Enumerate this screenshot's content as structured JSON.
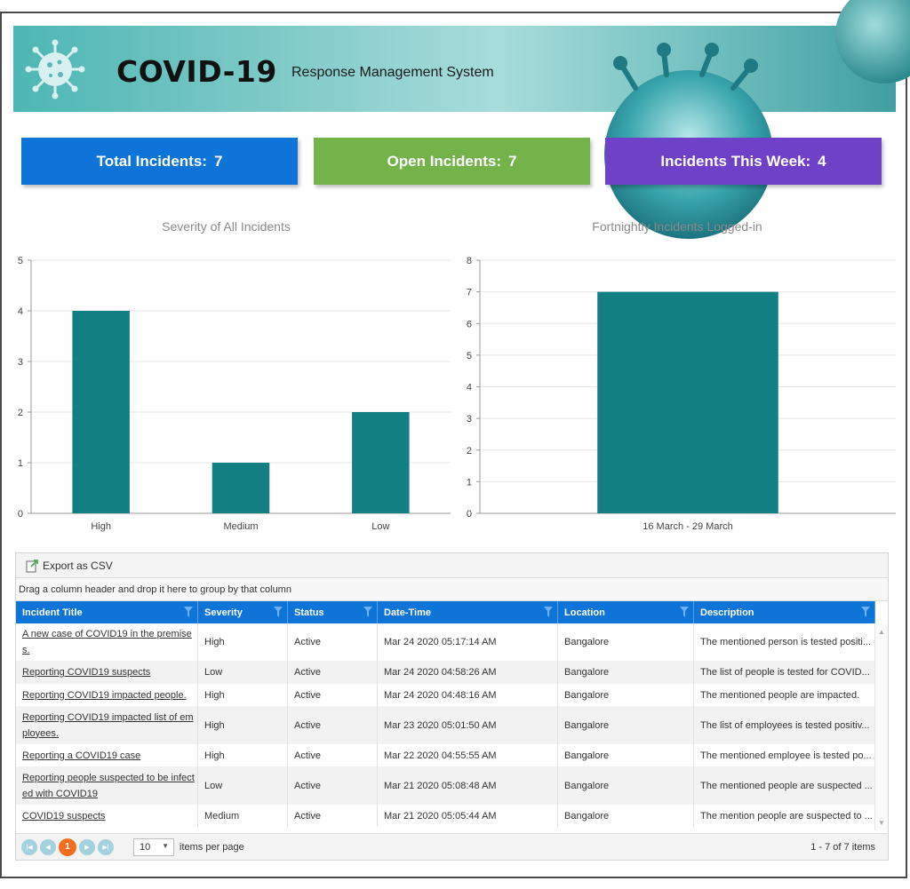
{
  "banner": {
    "title": "COVID-19",
    "subtitle": "Response Management System"
  },
  "cards": {
    "total": {
      "label": "Total Incidents:",
      "value": "7",
      "color": "#0f74d8"
    },
    "open": {
      "label": "Open Incidents:",
      "value": "7",
      "color": "#74b24a"
    },
    "week": {
      "label": "Incidents This Week:",
      "value": "4",
      "color": "#6f41c8"
    }
  },
  "chart_data": [
    {
      "type": "bar",
      "title": "Severity of All Incidents",
      "categories": [
        "High",
        "Medium",
        "Low"
      ],
      "values": [
        4,
        1,
        2
      ],
      "ylim": [
        0,
        5
      ],
      "yticks": [
        0,
        1,
        2,
        3,
        4,
        5
      ],
      "color": "#127f82",
      "grid": true
    },
    {
      "type": "bar",
      "title": "Fortnightly Incidents Logged-in",
      "categories": [
        "16 March - 29 March"
      ],
      "values": [
        7
      ],
      "ylim": [
        0,
        8
      ],
      "yticks": [
        0,
        1,
        2,
        3,
        4,
        5,
        6,
        7,
        8
      ],
      "color": "#127f82",
      "grid": true
    }
  ],
  "grid": {
    "export_label": "Export as CSV",
    "group_hint": "Drag a column header and drop it here to group by that column",
    "columns": [
      "Incident Title",
      "Severity",
      "Status",
      "Date-Time",
      "Location",
      "Description"
    ],
    "rows": [
      {
        "title": "A new case of COVID19 in the premise s.",
        "severity": "High",
        "status": "Active",
        "datetime": "Mar 24 2020 05:17:14 AM",
        "location": "Bangalore",
        "description": "The mentioned person is tested positi..."
      },
      {
        "title": "Reporting COVID19 suspects",
        "severity": "Low",
        "status": "Active",
        "datetime": "Mar 24 2020 04:58:26 AM",
        "location": "Bangalore",
        "description": "The list of people is tested for COVID..."
      },
      {
        "title": "Reporting COVID19 impacted people.",
        "severity": "High",
        "status": "Active",
        "datetime": "Mar 24 2020 04:48:16 AM",
        "location": "Bangalore",
        "description": "The mentioned people are impacted."
      },
      {
        "title": "Reporting COVID19 impacted list of em ployees.",
        "severity": "High",
        "status": "Active",
        "datetime": "Mar 23 2020 05:01:50 AM",
        "location": "Bangalore",
        "description": "The list of employees is tested positiv..."
      },
      {
        "title": "Reporting a COVID19 case",
        "severity": "High",
        "status": "Active",
        "datetime": "Mar 22 2020 04:55:55 AM",
        "location": "Bangalore",
        "description": "The mentioned employee is tested po..."
      },
      {
        "title": "Reporting people suspected to be infect ed with COVID19",
        "severity": "Low",
        "status": "Active",
        "datetime": "Mar 21 2020 05:08:48 AM",
        "location": "Bangalore",
        "description": "The mentioned people are suspected ..."
      },
      {
        "title": "COVID19 suspects",
        "severity": "Medium",
        "status": "Active",
        "datetime": "Mar 21 2020 05:05:44 AM",
        "location": "Bangalore",
        "description": "The mention people are suspected to ..."
      }
    ],
    "pager": {
      "current_page": "1",
      "page_size": "10",
      "per_page_label": "items per page",
      "info": "1 - 7 of 7 items"
    }
  }
}
